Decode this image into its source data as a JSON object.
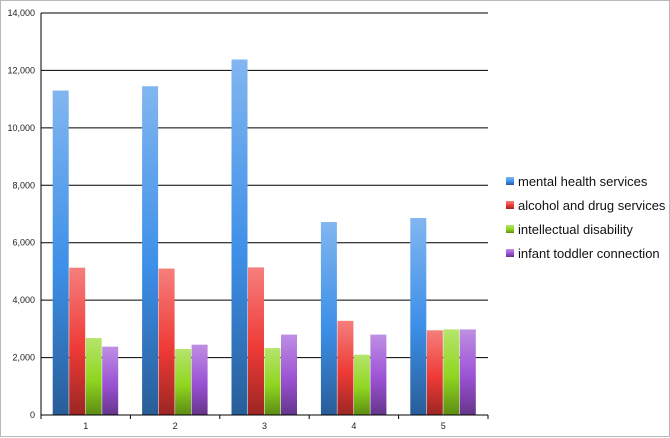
{
  "chart_data": {
    "type": "bar",
    "title": "",
    "xlabel": "",
    "ylabel": "",
    "categories": [
      "1",
      "2",
      "3",
      "4",
      "5"
    ],
    "ylim": [
      0,
      14000
    ],
    "yticks": [
      0,
      2000,
      4000,
      6000,
      8000,
      10000,
      12000,
      14000
    ],
    "ytick_labels": [
      "0",
      "2,000",
      "4,000",
      "6,000",
      "8,000",
      "10,000",
      "12,000",
      "14,000"
    ],
    "grid": true,
    "legend_position": "right",
    "series": [
      {
        "name": "mental health services",
        "color": "#3d8fe8",
        "values": [
          11300,
          11450,
          12380,
          6720,
          6860
        ]
      },
      {
        "name": "alcohol and drug services",
        "color": "#ef3a36",
        "values": [
          5130,
          5100,
          5140,
          3280,
          2950
        ]
      },
      {
        "name": "intellectual disability",
        "color": "#8fd61f",
        "values": [
          2680,
          2300,
          2330,
          2100,
          2980
        ]
      },
      {
        "name": "infant toddler connection",
        "color": "#9b52d4",
        "values": [
          2380,
          2450,
          2800,
          2800,
          2980
        ]
      }
    ]
  }
}
